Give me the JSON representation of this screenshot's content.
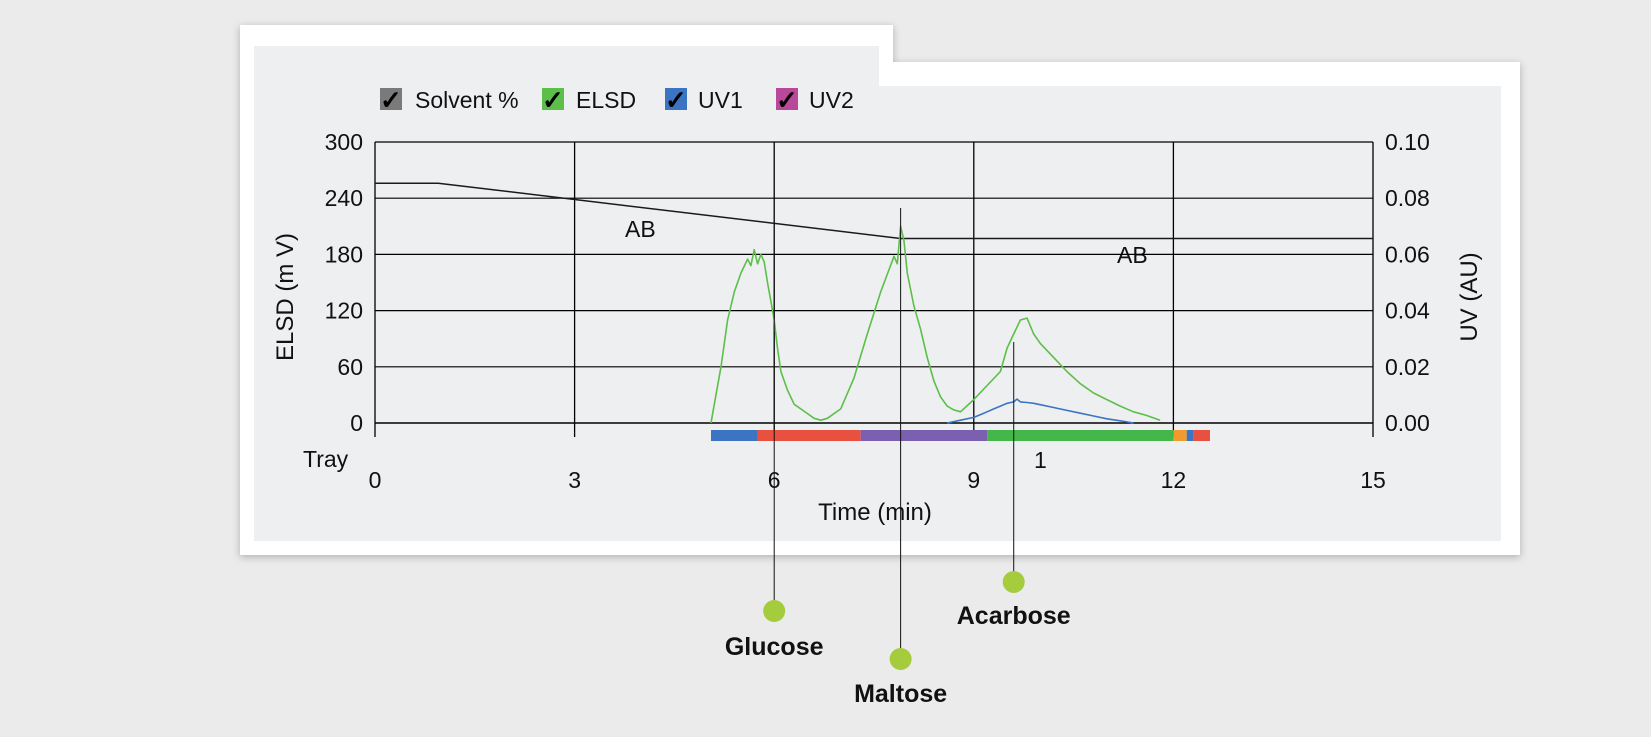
{
  "legend": [
    {
      "label": "Solvent %",
      "color": "#7a7a7a",
      "checked": true
    },
    {
      "label": "ELSD",
      "color": "#5cbf4a",
      "checked": true
    },
    {
      "label": "UV1",
      "color": "#3a74c2",
      "checked": true
    },
    {
      "label": "UV2",
      "color": "#b9479a",
      "checked": true
    }
  ],
  "annotations": {
    "solvent_label_1": "AB",
    "solvent_label_2": "AB",
    "tray_label": "Tray",
    "tray_number": "1"
  },
  "peaks": [
    {
      "name": "Glucose",
      "time": 6.0
    },
    {
      "name": "Maltose",
      "time": 7.9
    },
    {
      "name": "Acarbose",
      "time": 9.6
    }
  ],
  "colors": {
    "elsd": "#5cbf4a",
    "uv1": "#3a74c2",
    "marker": "#a4cc3c",
    "tray_segments": [
      "#3a74c2",
      "#e8503f",
      "#7b5fb0",
      "#45b649",
      "#f39a2c",
      "#3a74c2",
      "#e8503f"
    ]
  },
  "chart_data": {
    "type": "line",
    "title": "",
    "xlabel": "Time (min)",
    "ylabel_left": "ELSD (m V)",
    "ylabel_right": "UV (AU)",
    "xlim": [
      0,
      15
    ],
    "ylim_left": [
      0,
      300
    ],
    "ylim_right": [
      0,
      0.1
    ],
    "xticks": [
      "0",
      "3",
      "6",
      "9",
      "12",
      "15"
    ],
    "yticks_left": [
      "0",
      "60",
      "120",
      "180",
      "240",
      "300"
    ],
    "yticks_right": [
      "0.00",
      "0.02",
      "0.04",
      "0.06",
      "0.08",
      "0.10"
    ],
    "grid": true,
    "legend_position": "top-left",
    "series": [
      {
        "name": "Solvent %",
        "axis": "left",
        "x": [
          0,
          0.95,
          7.9,
          15
        ],
        "y": [
          256,
          256,
          197,
          197
        ]
      },
      {
        "name": "ELSD",
        "axis": "left",
        "x": [
          5.05,
          5.1,
          5.2,
          5.3,
          5.4,
          5.5,
          5.6,
          5.65,
          5.7,
          5.75,
          5.8,
          5.85,
          5.9,
          5.95,
          6.0,
          6.05,
          6.1,
          6.2,
          6.3,
          6.4,
          6.5,
          6.6,
          6.7,
          6.8,
          7.0,
          7.2,
          7.4,
          7.6,
          7.8,
          7.85,
          7.9,
          7.95,
          8.0,
          8.1,
          8.2,
          8.3,
          8.4,
          8.5,
          8.6,
          8.7,
          8.8,
          9.0,
          9.2,
          9.4,
          9.5,
          9.6,
          9.7,
          9.8,
          9.9,
          10.0,
          10.2,
          10.4,
          10.6,
          10.8,
          11.0,
          11.2,
          11.4,
          11.6,
          11.8
        ],
        "y": [
          0,
          20,
          60,
          110,
          140,
          160,
          175,
          168,
          185,
          170,
          180,
          172,
          150,
          130,
          110,
          80,
          55,
          35,
          20,
          15,
          10,
          5,
          3,
          5,
          15,
          48,
          95,
          140,
          178,
          170,
          210,
          195,
          160,
          125,
          100,
          70,
          45,
          28,
          18,
          14,
          12,
          25,
          40,
          55,
          80,
          95,
          110,
          112,
          95,
          85,
          70,
          55,
          42,
          32,
          25,
          18,
          12,
          8,
          3
        ]
      },
      {
        "name": "UV1",
        "axis": "right",
        "x": [
          8.6,
          8.8,
          9.0,
          9.1,
          9.2,
          9.3,
          9.4,
          9.5,
          9.6,
          9.65,
          9.7,
          9.8,
          9.9,
          10.0,
          10.2,
          10.4,
          10.6,
          10.8,
          11.0,
          11.2,
          11.4
        ],
        "y": [
          0,
          0.001,
          0.002,
          0.003,
          0.004,
          0.005,
          0.006,
          0.007,
          0.0075,
          0.0085,
          0.0075,
          0.0073,
          0.007,
          0.0065,
          0.0055,
          0.0045,
          0.0035,
          0.0025,
          0.0015,
          0.0008,
          0
        ]
      }
    ],
    "tray_bar": {
      "x_start": 5.05,
      "x_end": 12.55,
      "boundaries": [
        5.05,
        5.75,
        7.3,
        9.2,
        12.0,
        12.2,
        12.3,
        12.55
      ]
    }
  }
}
